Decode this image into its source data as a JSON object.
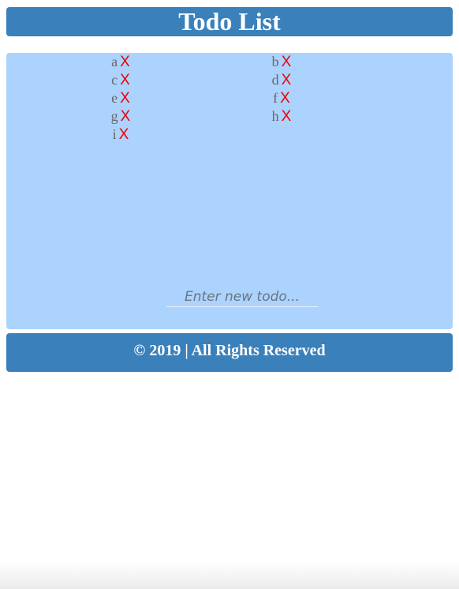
{
  "header": {
    "title": "Todo List"
  },
  "todos": {
    "items": [
      {
        "text": "a",
        "delete_label": "X"
      },
      {
        "text": "b",
        "delete_label": "X"
      },
      {
        "text": "c",
        "delete_label": "X"
      },
      {
        "text": "d",
        "delete_label": "X"
      },
      {
        "text": "e",
        "delete_label": "X"
      },
      {
        "text": "f",
        "delete_label": "X"
      },
      {
        "text": "g",
        "delete_label": "X"
      },
      {
        "text": "h",
        "delete_label": "X"
      },
      {
        "text": "i",
        "delete_label": "X"
      }
    ]
  },
  "new_todo": {
    "placeholder": "Enter new todo..."
  },
  "footer": {
    "text": "© 2019 | All Rights Reserved"
  },
  "colors": {
    "header_bg": "#3a80bb",
    "panel_bg": "#acd3fd",
    "delete": "#ee0000",
    "todo_text": "#666666"
  }
}
